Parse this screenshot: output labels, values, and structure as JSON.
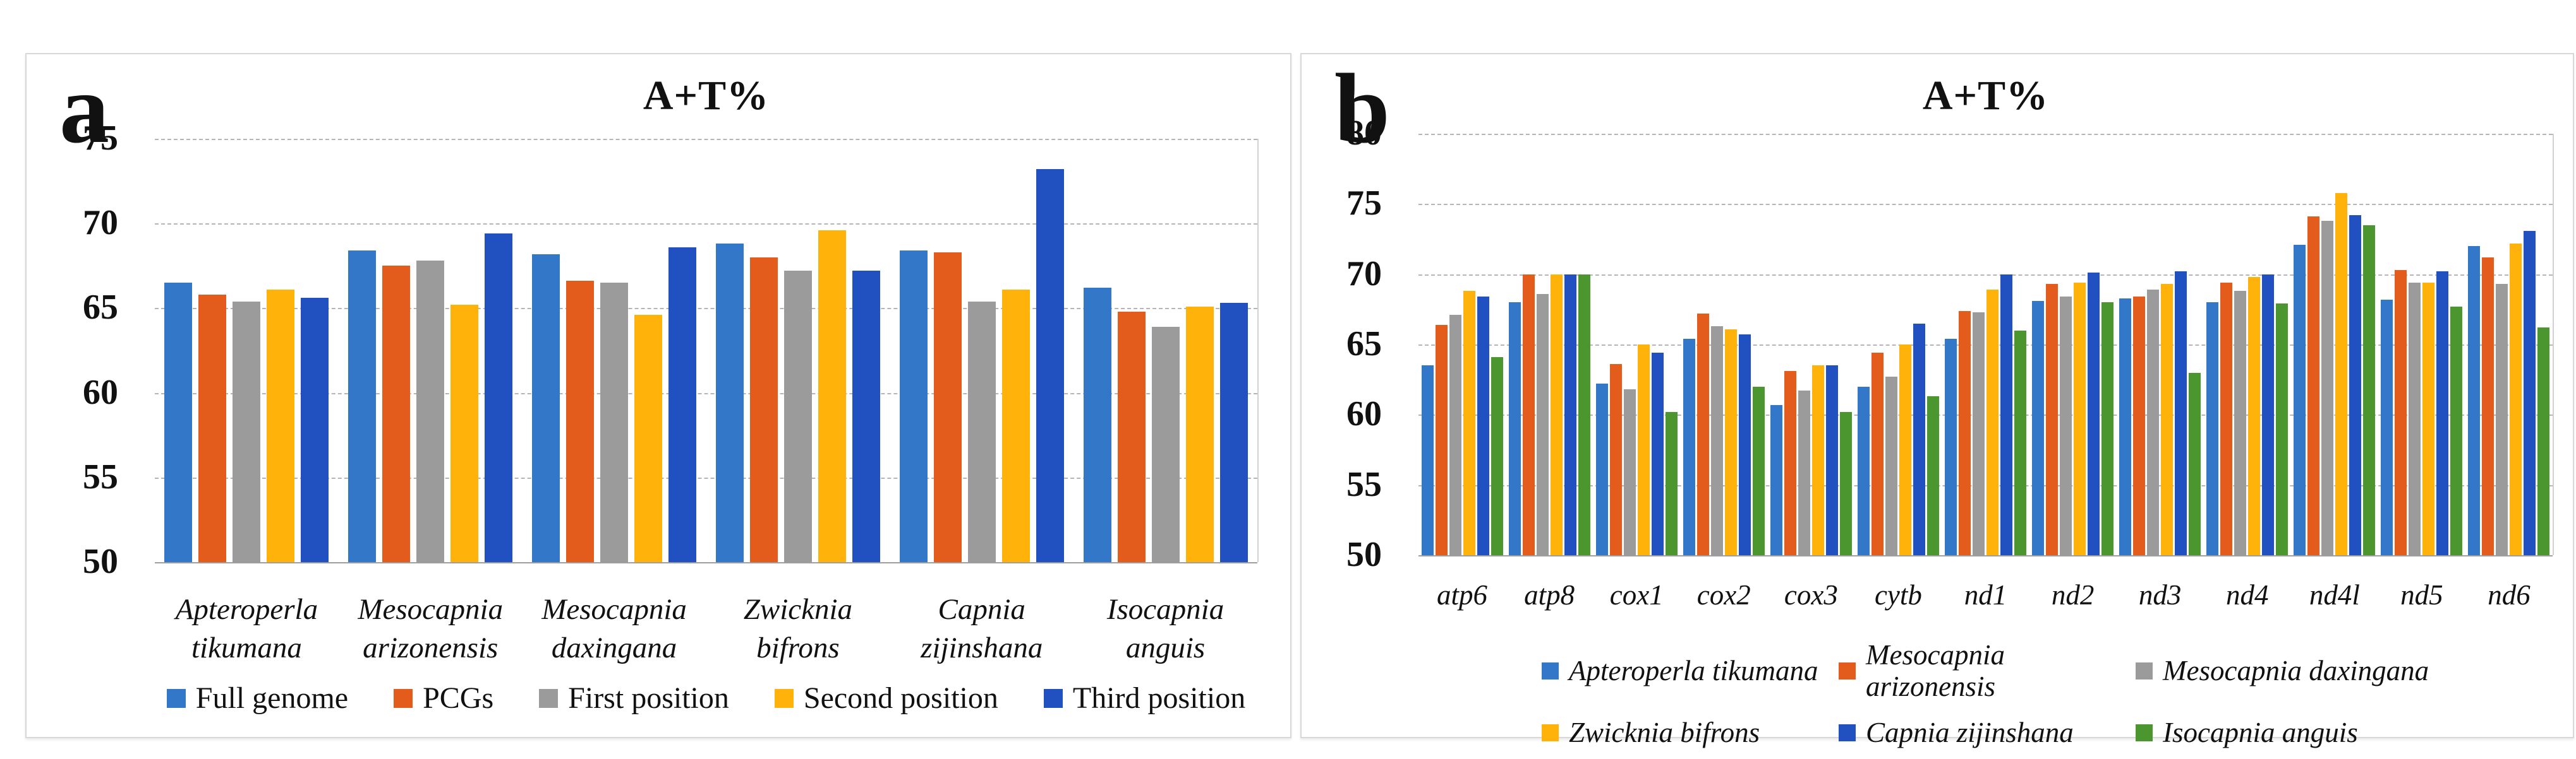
{
  "figure": {
    "background_color": "#ffffff",
    "panel_border_color": "#d8d8d8",
    "gridline_color": "#b5b5b5",
    "axis_baseline_color": "#9e9e9e"
  },
  "panels": [
    {
      "corner_label": "a"
    },
    {
      "corner_label": "b"
    }
  ],
  "chart_data": [
    {
      "type": "bar",
      "title": "A+T%",
      "xlabel": "",
      "ylabel": "",
      "ylim": [
        50,
        75
      ],
      "yticks": [
        75,
        70,
        65,
        60,
        55,
        50
      ],
      "grid": true,
      "legend_position": "bottom",
      "categories": [
        "Apteroperla\ntikumana",
        "Mesocapnia\narizonensis",
        "Mesocapnia\ndaxingana",
        "Zwicknia\nbifrons",
        "Capnia\nzijinshana",
        "Isocapnia\nanguis"
      ],
      "series": [
        {
          "name": "Full genome",
          "color": "#3377c9",
          "values": [
            66.5,
            68.4,
            68.2,
            68.8,
            68.4,
            66.2
          ]
        },
        {
          "name": "PCGs",
          "color": "#e45c1c",
          "values": [
            65.8,
            67.5,
            66.6,
            68.0,
            68.3,
            64.8
          ]
        },
        {
          "name": "First position",
          "color": "#9b9b9b",
          "values": [
            65.4,
            67.8,
            66.5,
            67.2,
            65.4,
            63.9
          ]
        },
        {
          "name": "Second position",
          "color": "#ffb30a",
          "values": [
            66.1,
            65.2,
            64.6,
            69.6,
            66.1,
            65.1
          ]
        },
        {
          "name": "Third position",
          "color": "#2150c0",
          "values": [
            65.6,
            69.4,
            68.6,
            67.2,
            73.2,
            65.3
          ]
        }
      ]
    },
    {
      "type": "bar",
      "title": "A+T%",
      "xlabel": "",
      "ylabel": "",
      "ylim": [
        50,
        80
      ],
      "yticks": [
        80,
        75,
        70,
        65,
        60,
        55,
        50
      ],
      "grid": true,
      "legend_position": "bottom",
      "categories": [
        "atp6",
        "atp8",
        "cox1",
        "cox2",
        "cox3",
        "cytb",
        "nd1",
        "nd2",
        "nd3",
        "nd4",
        "nd4l",
        "nd5",
        "nd6"
      ],
      "series": [
        {
          "name": "Apteroperla tikumana",
          "color": "#3377c9",
          "values": [
            63.5,
            68.0,
            62.2,
            65.4,
            60.7,
            62.0,
            65.4,
            68.1,
            68.3,
            68.0,
            72.1,
            68.2,
            72.0
          ]
        },
        {
          "name": "Mesocapnia arizonensis",
          "color": "#e45c1c",
          "values": [
            66.4,
            70.0,
            63.6,
            67.2,
            63.1,
            64.4,
            67.4,
            69.3,
            68.4,
            69.4,
            74.1,
            70.3,
            71.2
          ]
        },
        {
          "name": "Mesocapnia daxingana",
          "color": "#9b9b9b",
          "values": [
            67.1,
            68.6,
            61.8,
            66.3,
            61.7,
            62.7,
            67.3,
            68.4,
            68.9,
            68.8,
            73.8,
            69.4,
            69.3
          ]
        },
        {
          "name": "Zwicknia bifrons",
          "color": "#ffb30a",
          "values": [
            68.8,
            70.0,
            65.0,
            66.1,
            63.5,
            65.0,
            68.9,
            69.4,
            69.3,
            69.8,
            75.8,
            69.4,
            72.2
          ]
        },
        {
          "name": "Capnia zijinshana",
          "color": "#2150c0",
          "values": [
            68.4,
            70.0,
            64.4,
            65.7,
            63.5,
            66.5,
            70.0,
            70.1,
            70.2,
            70.0,
            74.2,
            70.2,
            73.1
          ]
        },
        {
          "name": "Isocapnia anguis",
          "color": "#4c9630",
          "values": [
            64.1,
            70.0,
            60.2,
            62.0,
            60.2,
            61.3,
            66.0,
            68.0,
            63.0,
            67.9,
            73.5,
            67.7,
            66.2
          ]
        }
      ]
    }
  ]
}
